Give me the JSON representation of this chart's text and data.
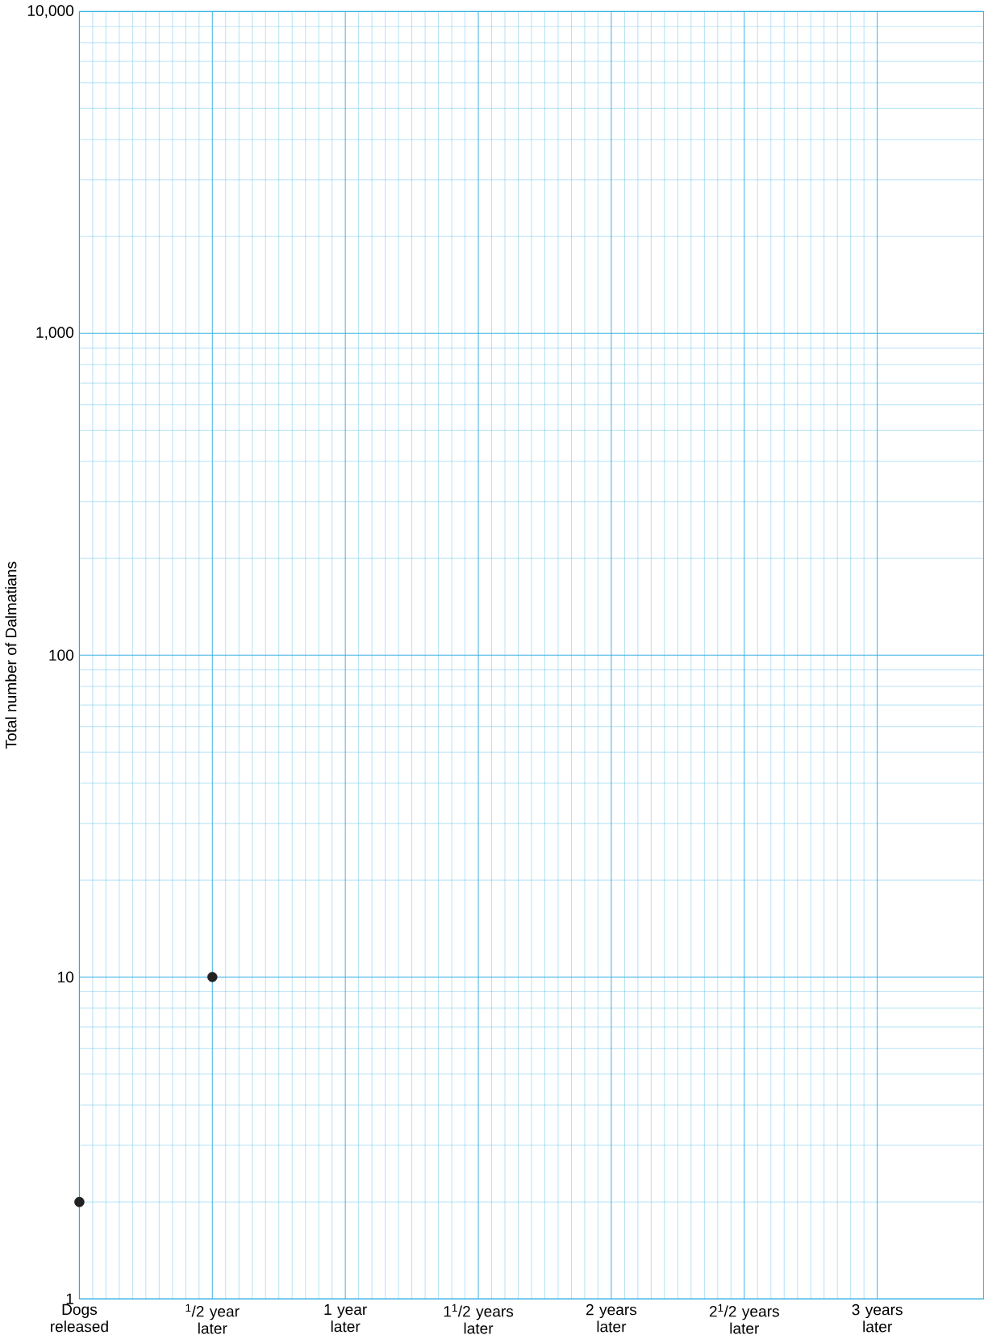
{
  "chart_data": {
    "type": "scatter",
    "ylabel": "Total number of Dalmatians",
    "categories": [
      "Dogs released",
      "$^{1}$/2 year later",
      "1 year later",
      "1$^{1}$/2 years later",
      "2 years later",
      "2$^{1}$/2 years later",
      "3 years later"
    ],
    "values": [
      2,
      10,
      null,
      null,
      null,
      null,
      null
    ],
    "color": "#222222",
    "marker": "circle",
    "log": "y",
    "ylim": [
      1,
      10000
    ],
    "yticks": [
      1,
      10,
      100,
      {
        "value": 1000,
        "label": "1,000"
      },
      {
        "value": 10000,
        "label": "10,000"
      }
    ],
    "grid": true
  }
}
